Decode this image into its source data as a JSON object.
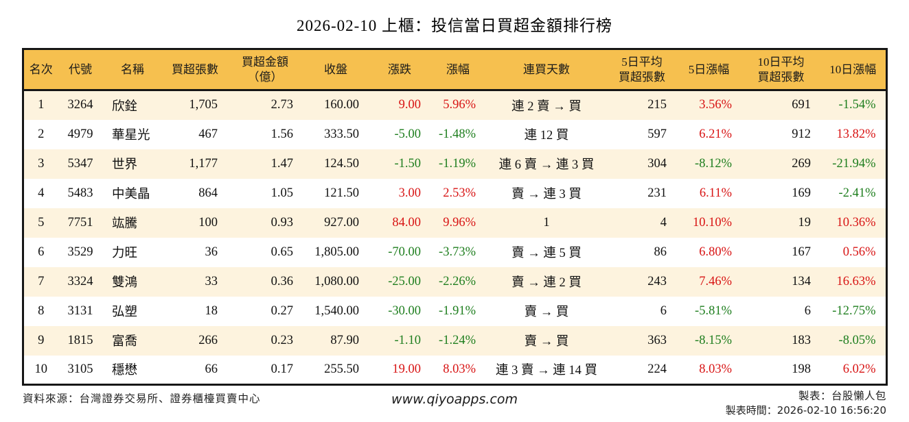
{
  "title": "2026-02-10 上櫃：投信當日買超金額排行榜",
  "colors": {
    "header_bg": "#F6C04F",
    "row_alt_bg": "#FDF3DE",
    "up_red": "#D81414",
    "down_green": "#1E7E1E",
    "border": "#161616"
  },
  "chart_data": {
    "type": "table",
    "title": "2026-02-10 上櫃：投信當日買超金額排行榜",
    "columns": [
      "名次",
      "代號",
      "名稱",
      "買超張數",
      "買超金額\n（億）",
      "收盤",
      "漲跌",
      "漲幅",
      "連買天數",
      "5日平均\n買超張數",
      "5日漲幅",
      "10日平均\n買超張數",
      "10日漲幅"
    ],
    "rows": [
      {
        "rank": "1",
        "code": "3264",
        "name": "欣銓",
        "vol": "1,705",
        "amt": "2.73",
        "close": "160.00",
        "chg": {
          "v": "9.00",
          "c": "up"
        },
        "pct": {
          "v": "5.96%",
          "c": "up"
        },
        "streak": "連 2 賣 → 買",
        "avg5": "215",
        "pct5": {
          "v": "3.56%",
          "c": "up"
        },
        "avg10": "691",
        "pct10": {
          "v": "-1.54%",
          "c": "down"
        }
      },
      {
        "rank": "2",
        "code": "4979",
        "name": "華星光",
        "vol": "467",
        "amt": "1.56",
        "close": "333.50",
        "chg": {
          "v": "-5.00",
          "c": "down"
        },
        "pct": {
          "v": "-1.48%",
          "c": "down"
        },
        "streak": "連 12 買",
        "avg5": "597",
        "pct5": {
          "v": "6.21%",
          "c": "up"
        },
        "avg10": "912",
        "pct10": {
          "v": "13.82%",
          "c": "up"
        }
      },
      {
        "rank": "3",
        "code": "5347",
        "name": "世界",
        "vol": "1,177",
        "amt": "1.47",
        "close": "124.50",
        "chg": {
          "v": "-1.50",
          "c": "down"
        },
        "pct": {
          "v": "-1.19%",
          "c": "down"
        },
        "streak": "連 6 賣 → 連 3 買",
        "avg5": "304",
        "pct5": {
          "v": "-8.12%",
          "c": "down"
        },
        "avg10": "269",
        "pct10": {
          "v": "-21.94%",
          "c": "down"
        }
      },
      {
        "rank": "4",
        "code": "5483",
        "name": "中美晶",
        "vol": "864",
        "amt": "1.05",
        "close": "121.50",
        "chg": {
          "v": "3.00",
          "c": "up"
        },
        "pct": {
          "v": "2.53%",
          "c": "up"
        },
        "streak": "賣 → 連 3 買",
        "avg5": "231",
        "pct5": {
          "v": "6.11%",
          "c": "up"
        },
        "avg10": "169",
        "pct10": {
          "v": "-2.41%",
          "c": "down"
        }
      },
      {
        "rank": "5",
        "code": "7751",
        "name": "竑騰",
        "vol": "100",
        "amt": "0.93",
        "close": "927.00",
        "chg": {
          "v": "84.00",
          "c": "up"
        },
        "pct": {
          "v": "9.96%",
          "c": "up"
        },
        "streak": "1",
        "avg5": "4",
        "pct5": {
          "v": "10.10%",
          "c": "up"
        },
        "avg10": "19",
        "pct10": {
          "v": "10.36%",
          "c": "up"
        }
      },
      {
        "rank": "6",
        "code": "3529",
        "name": "力旺",
        "vol": "36",
        "amt": "0.65",
        "close": "1,805.00",
        "chg": {
          "v": "-70.00",
          "c": "down"
        },
        "pct": {
          "v": "-3.73%",
          "c": "down"
        },
        "streak": "賣 → 連 5 買",
        "avg5": "86",
        "pct5": {
          "v": "6.80%",
          "c": "up"
        },
        "avg10": "167",
        "pct10": {
          "v": "0.56%",
          "c": "up"
        }
      },
      {
        "rank": "7",
        "code": "3324",
        "name": "雙鴻",
        "vol": "33",
        "amt": "0.36",
        "close": "1,080.00",
        "chg": {
          "v": "-25.00",
          "c": "down"
        },
        "pct": {
          "v": "-2.26%",
          "c": "down"
        },
        "streak": "賣 → 連 2 買",
        "avg5": "243",
        "pct5": {
          "v": "7.46%",
          "c": "up"
        },
        "avg10": "134",
        "pct10": {
          "v": "16.63%",
          "c": "up"
        }
      },
      {
        "rank": "8",
        "code": "3131",
        "name": "弘塑",
        "vol": "18",
        "amt": "0.27",
        "close": "1,540.00",
        "chg": {
          "v": "-30.00",
          "c": "down"
        },
        "pct": {
          "v": "-1.91%",
          "c": "down"
        },
        "streak": "賣 → 買",
        "avg5": "6",
        "pct5": {
          "v": "-5.81%",
          "c": "down"
        },
        "avg10": "6",
        "pct10": {
          "v": "-12.75%",
          "c": "down"
        }
      },
      {
        "rank": "9",
        "code": "1815",
        "name": "富喬",
        "vol": "266",
        "amt": "0.23",
        "close": "87.90",
        "chg": {
          "v": "-1.10",
          "c": "down"
        },
        "pct": {
          "v": "-1.24%",
          "c": "down"
        },
        "streak": "賣 → 買",
        "avg5": "363",
        "pct5": {
          "v": "-8.15%",
          "c": "down"
        },
        "avg10": "183",
        "pct10": {
          "v": "-8.05%",
          "c": "down"
        }
      },
      {
        "rank": "10",
        "code": "3105",
        "name": "穩懋",
        "vol": "66",
        "amt": "0.17",
        "close": "255.50",
        "chg": {
          "v": "19.00",
          "c": "up"
        },
        "pct": {
          "v": "8.03%",
          "c": "up"
        },
        "streak": "連 3 賣 → 連 14 買",
        "avg5": "224",
        "pct5": {
          "v": "8.03%",
          "c": "up"
        },
        "avg10": "198",
        "pct10": {
          "v": "6.02%",
          "c": "up"
        }
      }
    ],
    "color_legend": {
      "up": "red = 上漲",
      "down": "green = 下跌"
    }
  },
  "footer": {
    "source": "資料來源：台灣證券交易所、證券櫃檯買賣中心",
    "website": "www.qiyoapps.com",
    "maker": "製表：台股懶人包",
    "timestamp": "製表時間：2026-02-10 16:56:20"
  }
}
